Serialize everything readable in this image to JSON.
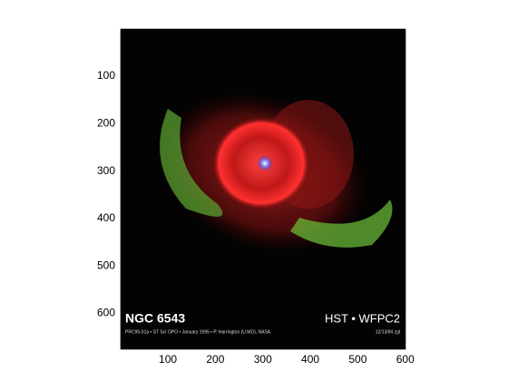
{
  "chart_data": {
    "type": "image",
    "annotations": [
      "NGC 6543",
      "HST • WFPC2",
      "PRC95-01a • ST ScI OPO • January 1995 • P. Harrington (U.MD), NASA",
      "12/13/94 zgl"
    ],
    "xlim": [
      0.5,
      600.5
    ],
    "ylim": [
      0.5,
      675.5
    ],
    "xticks": [
      100,
      200,
      300,
      400,
      500,
      600
    ],
    "yticks": [
      100,
      200,
      300,
      400,
      500,
      600
    ],
    "y_reversed": true
  }
}
